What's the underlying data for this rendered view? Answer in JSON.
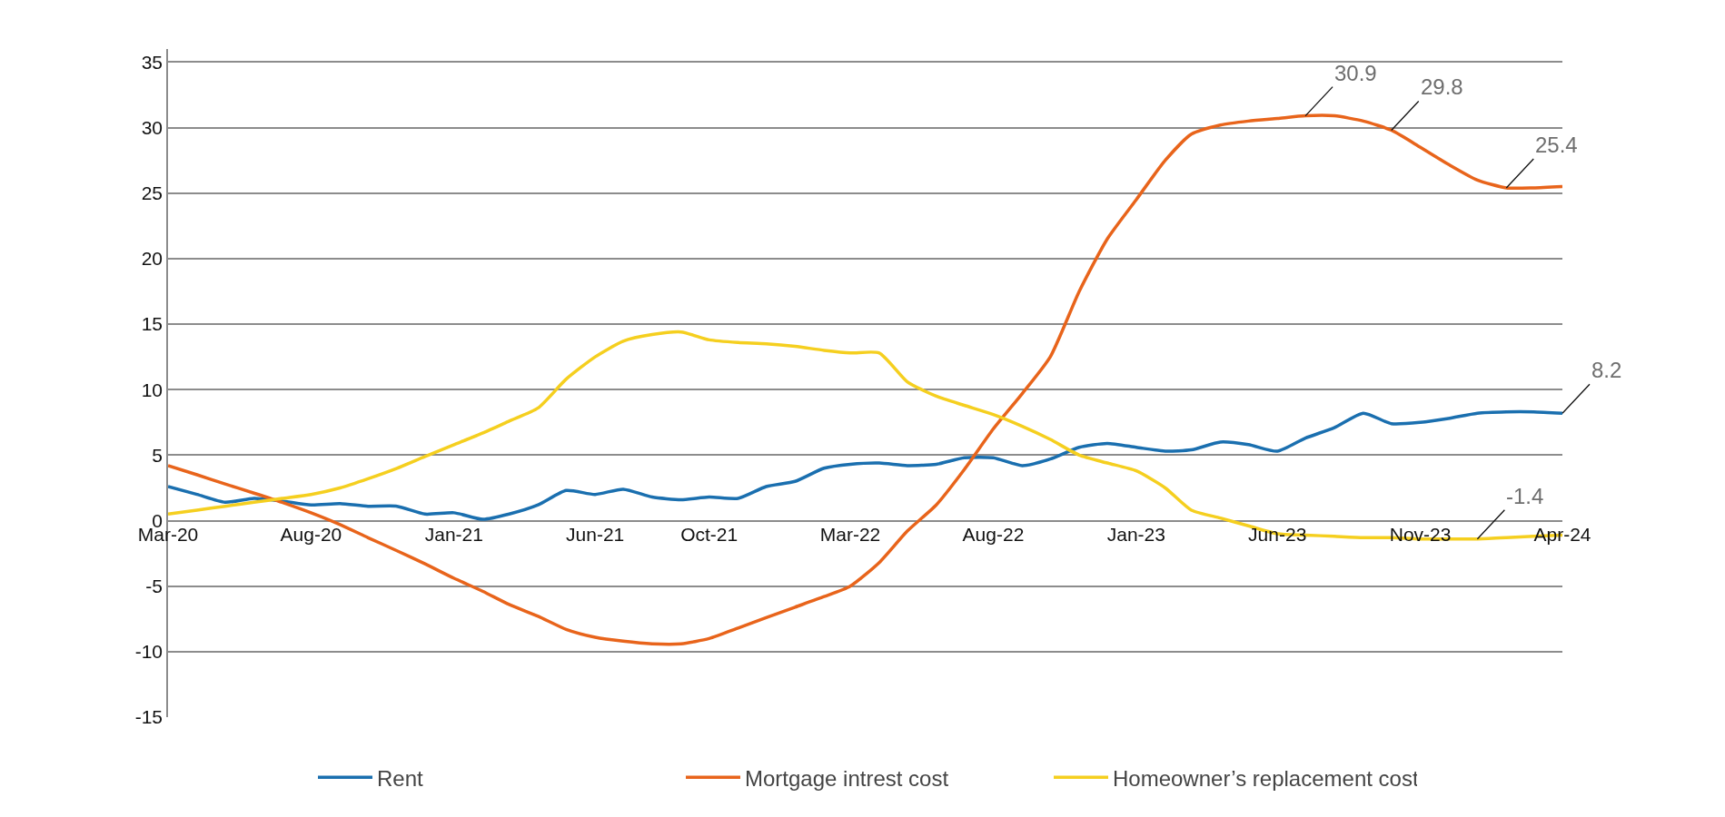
{
  "chart_data": {
    "type": "line",
    "x": [
      "2020-03",
      "2020-04",
      "2020-05",
      "2020-06",
      "2020-07",
      "2020-08",
      "2020-09",
      "2020-10",
      "2020-11",
      "2020-12",
      "2021-01",
      "2021-02",
      "2021-03",
      "2021-04",
      "2021-05",
      "2021-06",
      "2021-07",
      "2021-08",
      "2021-09",
      "2021-10",
      "2021-11",
      "2021-12",
      "2022-01",
      "2022-02",
      "2022-03",
      "2022-04",
      "2022-05",
      "2022-06",
      "2022-07",
      "2022-08",
      "2022-09",
      "2022-10",
      "2022-11",
      "2022-12",
      "2023-01",
      "2023-02",
      "2023-03",
      "2023-04",
      "2023-05",
      "2023-06",
      "2023-07",
      "2023-08",
      "2023-09",
      "2023-10",
      "2023-11",
      "2023-12",
      "2024-01",
      "2024-02",
      "2024-03",
      "2024-04"
    ],
    "series": [
      {
        "name": "Rent",
        "color": "#1a6faf",
        "values": [
          2.6,
          2.0,
          1.4,
          1.7,
          1.5,
          1.2,
          1.3,
          1.1,
          1.1,
          0.5,
          0.6,
          0.1,
          0.5,
          1.2,
          2.3,
          2.0,
          2.4,
          1.8,
          1.6,
          1.8,
          1.7,
          2.6,
          3.0,
          4.0,
          4.3,
          4.4,
          4.2,
          4.3,
          4.8,
          4.8,
          4.2,
          4.7,
          5.6,
          5.9,
          5.6,
          5.3,
          5.4,
          6.0,
          5.8,
          5.3,
          6.3,
          7.1,
          8.2,
          7.4,
          7.5,
          7.8,
          8.2,
          8.3,
          8.3,
          8.2
        ]
      },
      {
        "name": "Mortgage intrest cost",
        "color": "#e8641b",
        "values": [
          4.2,
          3.5,
          2.8,
          2.1,
          1.4,
          0.6,
          -0.3,
          -1.3,
          -2.3,
          -3.3,
          -4.4,
          -5.4,
          -6.4,
          -7.3,
          -8.3,
          -8.9,
          -9.2,
          -9.4,
          -9.4,
          -9.0,
          -8.2,
          -7.4,
          -6.6,
          -5.8,
          -5.0,
          -3.2,
          -0.8,
          1.2,
          3.9,
          7.0,
          9.7,
          12.5,
          17.5,
          21.5,
          24.5,
          27.5,
          29.5,
          30.2,
          30.5,
          30.7,
          30.9,
          30.9,
          30.5,
          29.8,
          28.5,
          27.2,
          26.0,
          25.4,
          25.4,
          25.5
        ]
      },
      {
        "name": "Homeowner’s replacement cost",
        "color": "#f5cf1f",
        "values": [
          0.5,
          0.8,
          1.1,
          1.4,
          1.7,
          2.0,
          2.5,
          3.2,
          4.0,
          4.9,
          5.8,
          6.7,
          7.6,
          8.6,
          10.8,
          12.5,
          13.7,
          14.2,
          14.4,
          13.8,
          13.6,
          13.5,
          13.3,
          13.0,
          12.8,
          12.8,
          10.6,
          9.5,
          8.8,
          8.1,
          7.2,
          6.2,
          5.0,
          4.4,
          3.8,
          2.5,
          0.8,
          0.2,
          -0.4,
          -1.0,
          -1.1,
          -1.2,
          -1.3,
          -1.3,
          -1.4,
          -1.4,
          -1.4,
          -1.3,
          -1.2,
          -1.1
        ]
      }
    ],
    "annotations": [
      {
        "text": "30.9",
        "x": "2023-07",
        "y": 30.9
      },
      {
        "text": "29.8",
        "x": "2023-10",
        "y": 29.8
      },
      {
        "text": "25.4",
        "x": "2024-02",
        "y": 25.4
      },
      {
        "text": "8.2",
        "x": "2024-04",
        "y": 8.2
      },
      {
        "text": "-1.4",
        "x": "2024-01",
        "y": -1.4
      }
    ],
    "ylim": [
      -15,
      36
    ],
    "yticks": [
      -15,
      -10,
      -5,
      0,
      5,
      10,
      15,
      20,
      25,
      30,
      35
    ],
    "xlim": [
      "2020-03",
      "2024-04"
    ],
    "xticks": [
      {
        "value": "2020-03",
        "label": "Mar-20"
      },
      {
        "value": "2020-08",
        "label": "Aug-20"
      },
      {
        "value": "2021-01",
        "label": "Jan-21"
      },
      {
        "value": "2021-06",
        "label": "Jun-21"
      },
      {
        "value": "2021-10",
        "label": "Oct-21"
      },
      {
        "value": "2022-03",
        "label": "Mar-22"
      },
      {
        "value": "2022-08",
        "label": "Aug-22"
      },
      {
        "value": "2023-01",
        "label": "Jan-23"
      },
      {
        "value": "2023-06",
        "label": "Jun-23"
      },
      {
        "value": "2023-11",
        "label": "Nov-23"
      },
      {
        "value": "2024-04",
        "label": "Apr-24"
      }
    ],
    "grid": "y",
    "legend": "bottom",
    "marker": "none",
    "line_style": "solid"
  }
}
